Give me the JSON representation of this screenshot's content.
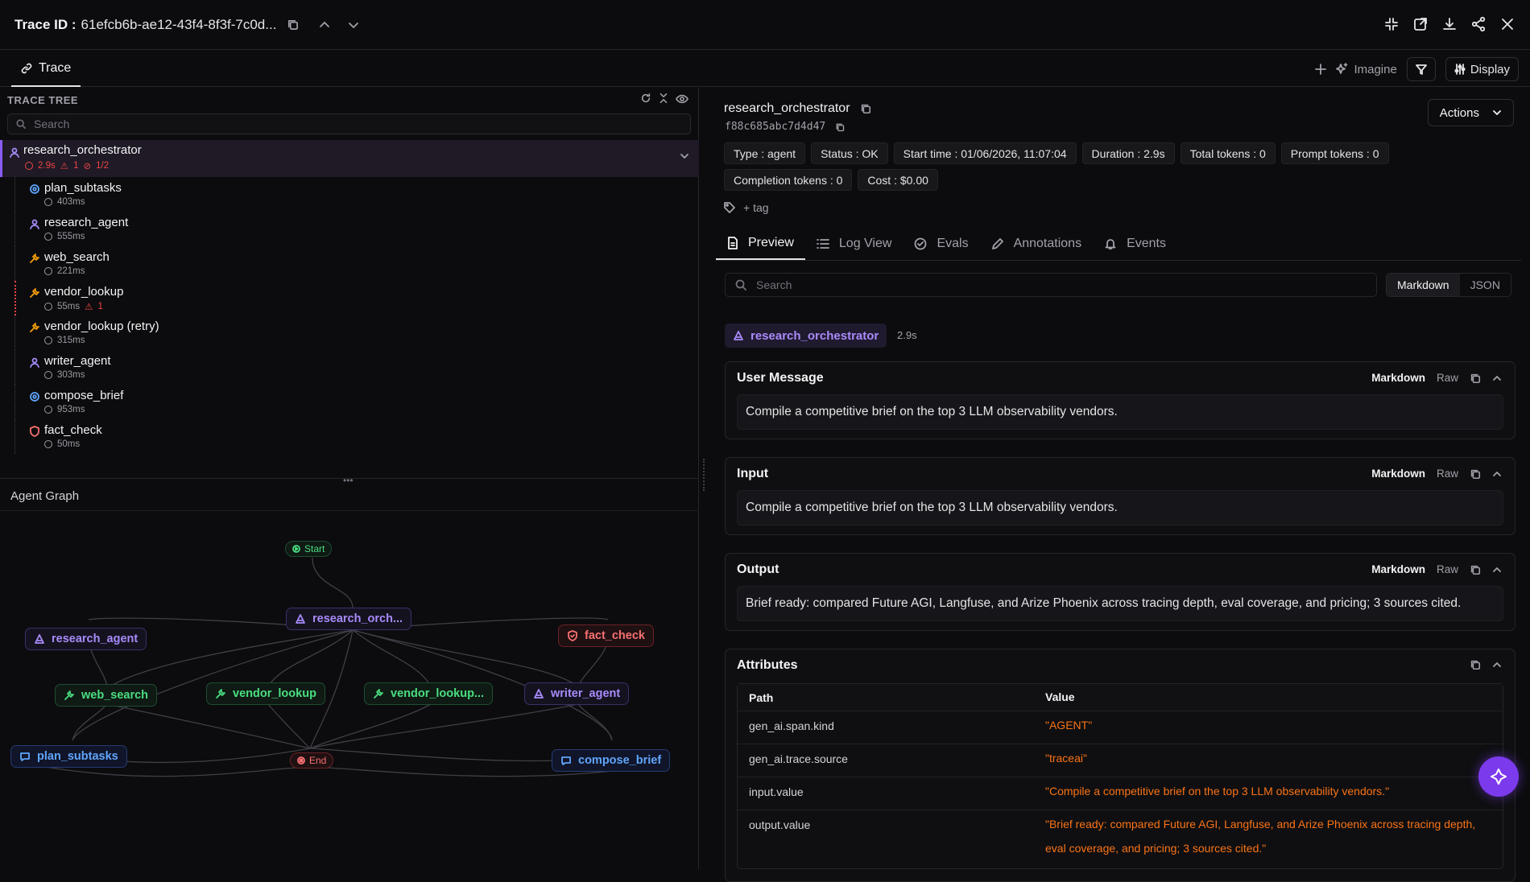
{
  "header": {
    "trace_label": "Trace ID :",
    "trace_id": "61efcb6b-ae12-43f4-8f3f-7c0d..."
  },
  "tabs": {
    "trace": "Trace",
    "imagine": "Imagine",
    "display": "Display"
  },
  "tree": {
    "title": "TRACE TREE",
    "search_placeholder": "Search",
    "root": {
      "name": "research_orchestrator",
      "duration": "2.9s",
      "warnings": "1",
      "errors": "1/2"
    },
    "items": [
      {
        "name": "plan_subtasks",
        "duration": "403ms",
        "kind": "chain"
      },
      {
        "name": "research_agent",
        "duration": "555ms",
        "kind": "agent"
      },
      {
        "name": "web_search",
        "duration": "221ms",
        "kind": "tool"
      },
      {
        "name": "vendor_lookup",
        "duration": "55ms",
        "kind": "tool",
        "warnings": "1"
      },
      {
        "name": "vendor_lookup (retry)",
        "duration": "315ms",
        "kind": "tool"
      },
      {
        "name": "writer_agent",
        "duration": "303ms",
        "kind": "agent"
      },
      {
        "name": "compose_brief",
        "duration": "953ms",
        "kind": "chain"
      },
      {
        "name": "fact_check",
        "duration": "50ms",
        "kind": "guard"
      }
    ]
  },
  "graph": {
    "title": "Agent Graph",
    "start": "Start",
    "end": "End",
    "nodes": {
      "orch": "research_orch...",
      "research_agent": "research_agent",
      "fact_check": "fact_check",
      "web_search": "web_search",
      "vendor_lookup": "vendor_lookup",
      "vendor_lookup_retry": "vendor_lookup...",
      "writer_agent": "writer_agent",
      "plan_subtasks": "plan_subtasks",
      "compose_brief": "compose_brief"
    }
  },
  "span": {
    "name": "research_orchestrator",
    "hash": "f88c685abc7d4d47",
    "actions_label": "Actions",
    "chips": [
      "Type : agent",
      "Status : OK",
      "Start time : 01/06/2026, 11:07:04",
      "Duration : 2.9s",
      "Total tokens : 0",
      "Prompt tokens : 0",
      "Completion tokens : 0",
      "Cost : $0.00"
    ],
    "tag_label": "+ tag"
  },
  "detail_tabs": [
    "Preview",
    "Log View",
    "Evals",
    "Annotations",
    "Events"
  ],
  "preview": {
    "search_placeholder": "Search",
    "format_markdown": "Markdown",
    "format_json": "JSON",
    "agent_pill": "research_orchestrator",
    "agent_duration": "2.9s",
    "md": "Markdown",
    "raw": "Raw",
    "user_message_title": "User Message",
    "user_message": "Compile a competitive brief on the top 3 LLM observability vendors.",
    "input_title": "Input",
    "input": "Compile a competitive brief on the top 3 LLM observability vendors.",
    "output_title": "Output",
    "output": "Brief ready: compared Future AGI, Langfuse, and Arize Phoenix across tracing depth, eval coverage, and pricing; 3 sources cited.",
    "attributes_title": "Attributes",
    "attr_headers": [
      "Path",
      "Value"
    ],
    "attributes": [
      {
        "path": "gen_ai.span.kind",
        "value": "\"AGENT\""
      },
      {
        "path": "gen_ai.trace.source",
        "value": "\"traceai\""
      },
      {
        "path": "input.value",
        "value": "\"Compile a competitive brief on the top 3 LLM observability vendors.\""
      },
      {
        "path": "output.value",
        "value": "\"Brief ready: compared Future AGI, Langfuse, and Arize Phoenix across tracing depth, eval coverage, and pricing; 3 sources cited.\""
      }
    ]
  },
  "colors": {
    "agent": "#a78bfa",
    "tool": "#4ade80",
    "chain": "#60a5fa",
    "guard": "#f87171",
    "value": "#f97316",
    "accent": "#7c3aed"
  }
}
